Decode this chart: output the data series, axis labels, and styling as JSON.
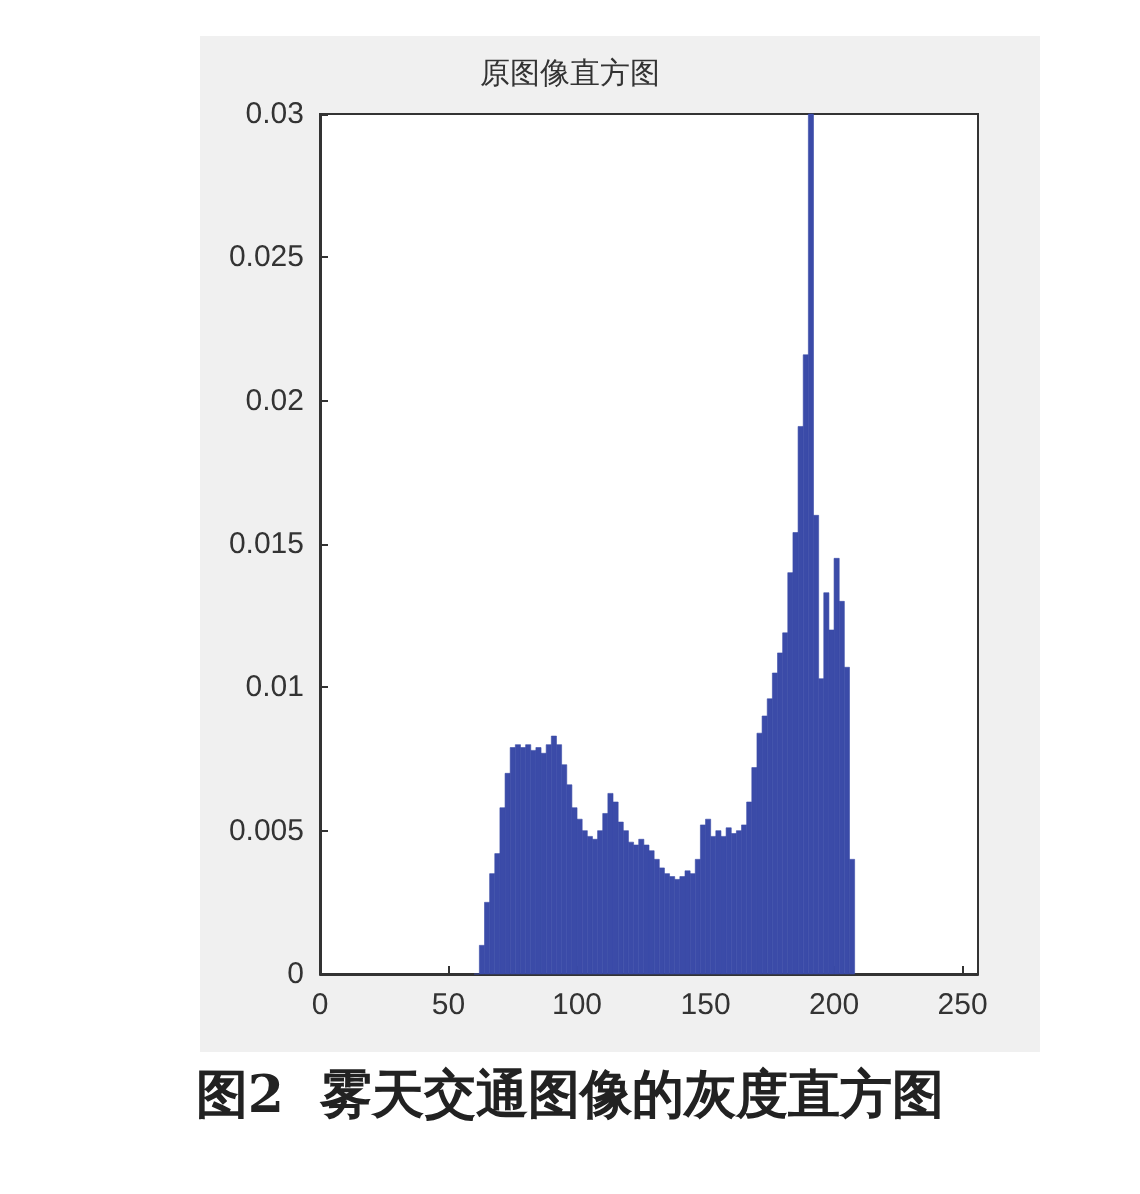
{
  "chart_data": {
    "type": "histogram",
    "title": "原图像直方图",
    "annotations": [
      "图2  雾天交通图像的灰度直方图"
    ],
    "bins": [
      60,
      62,
      64,
      66,
      68,
      70,
      72,
      74,
      76,
      78,
      80,
      82,
      84,
      86,
      88,
      90,
      92,
      94,
      96,
      98,
      100,
      102,
      104,
      106,
      108,
      110,
      112,
      114,
      116,
      118,
      120,
      122,
      124,
      126,
      128,
      130,
      132,
      134,
      136,
      138,
      140,
      142,
      144,
      146,
      148,
      150,
      152,
      154,
      156,
      158,
      160,
      162,
      164,
      166,
      168,
      170,
      172,
      174,
      176,
      178,
      180,
      182,
      184,
      186,
      188,
      190,
      192,
      194,
      196,
      198,
      200,
      202,
      204,
      206,
      208
    ],
    "values": [
      0,
      0.001,
      0.0025,
      0.0035,
      0.0042,
      0.0058,
      0.007,
      0.0079,
      0.008,
      0.0079,
      0.008,
      0.0078,
      0.0079,
      0.0077,
      0.008,
      0.0083,
      0.008,
      0.0073,
      0.0066,
      0.0058,
      0.0054,
      0.005,
      0.0048,
      0.0047,
      0.005,
      0.0056,
      0.0063,
      0.006,
      0.0053,
      0.005,
      0.0046,
      0.0045,
      0.0047,
      0.0045,
      0.0043,
      0.004,
      0.0037,
      0.0035,
      0.0034,
      0.0033,
      0.0034,
      0.0036,
      0.0035,
      0.004,
      0.0052,
      0.0054,
      0.0048,
      0.005,
      0.0048,
      0.0051,
      0.0049,
      0.005,
      0.0052,
      0.006,
      0.0072,
      0.0084,
      0.009,
      0.0096,
      0.0105,
      0.0112,
      0.0119,
      0.014,
      0.0154,
      0.0191,
      0.0216,
      0.03,
      0.016,
      0.0103,
      0.0133,
      0.012,
      0.0145,
      0.013,
      0.0107,
      0.004
    ],
    "color": "#3b4ba8",
    "xlim": [
      0,
      256
    ],
    "xticks": [
      0,
      50,
      100,
      150,
      200,
      250
    ],
    "ylim": [
      0,
      0.03
    ],
    "yticks": [
      0,
      0.005,
      0.01,
      0.015,
      0.02,
      0.025,
      0.03
    ],
    "grid": false
  }
}
